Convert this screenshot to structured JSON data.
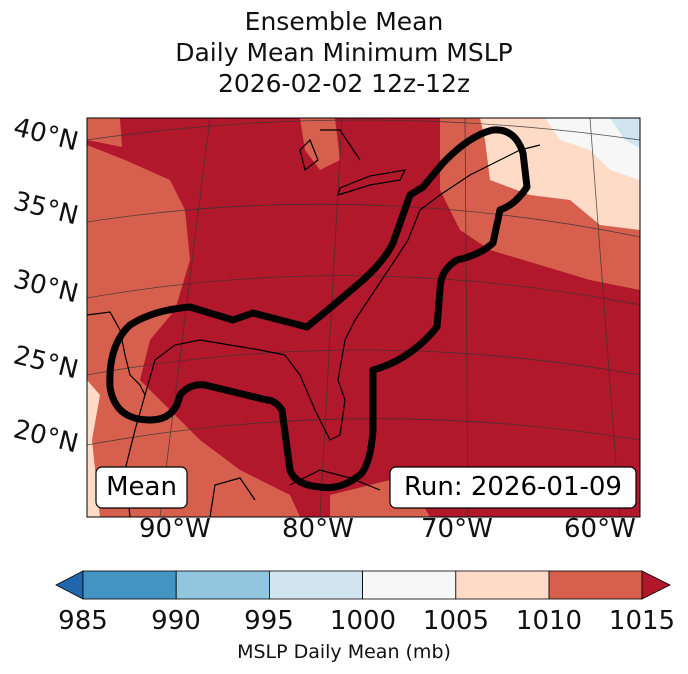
{
  "title": {
    "line1": "Ensemble Mean",
    "line2": "Daily Mean Minimum MSLP",
    "line3": "2026-02-02 12z-12z"
  },
  "map": {
    "lat_labels": [
      "40°N",
      "35°N",
      "30°N",
      "25°N",
      "20°N"
    ],
    "lon_labels": [
      "90°W",
      "80°W",
      "70°W",
      "60°W"
    ],
    "mean_label": "Mean",
    "run_label": "Run: 2026-01-09"
  },
  "colorbar": {
    "ticks": [
      "985",
      "990",
      "995",
      "1000",
      "1005",
      "1010",
      "1015"
    ],
    "label": "MSLP Daily Mean (mb)",
    "colors": [
      "#2166ac",
      "#4393c3",
      "#92c5de",
      "#d1e5f0",
      "#f7f7f7",
      "#fddbc7",
      "#d6604d",
      "#b2182b"
    ]
  }
}
